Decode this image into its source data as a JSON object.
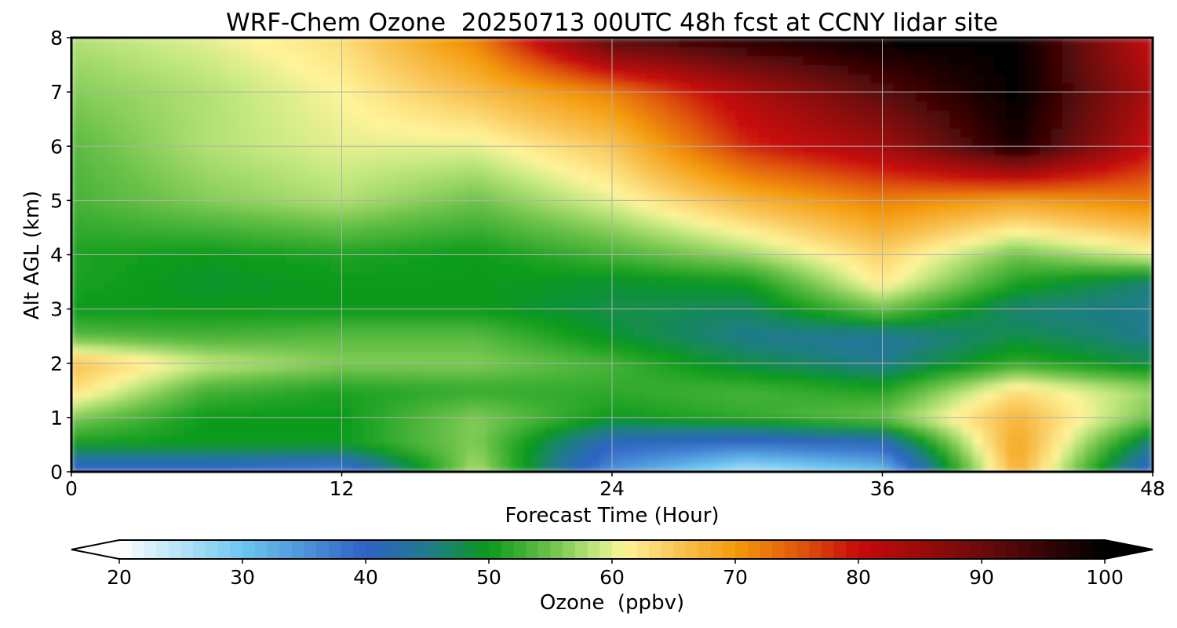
{
  "chart_data": {
    "type": "heatmap",
    "title": "WRF-Chem Ozone  20250713 00UTC 48h fcst at CCNY lidar site",
    "xlabel": "Forecast Time (Hour)",
    "ylabel": "Alt AGL (km)",
    "xlim": [
      0,
      48
    ],
    "ylim": [
      0,
      8
    ],
    "xticks": [
      "0",
      "12",
      "24",
      "36",
      "48"
    ],
    "yticks": [
      "0",
      "1",
      "2",
      "3",
      "4",
      "5",
      "6",
      "7",
      "8"
    ],
    "grid": true,
    "colorbar": {
      "label": "Ozone  (ppbv)",
      "range": [
        20,
        100
      ],
      "ticks": [
        "20",
        "30",
        "40",
        "50",
        "60",
        "70",
        "80",
        "90",
        "100"
      ],
      "extend": "both",
      "stops": [
        {
          "v": 20,
          "c": "#ffffff"
        },
        {
          "v": 30,
          "c": "#6cc6f0"
        },
        {
          "v": 40,
          "c": "#2e62c4"
        },
        {
          "v": 45,
          "c": "#217a8f"
        },
        {
          "v": 50,
          "c": "#0a9a1a"
        },
        {
          "v": 55,
          "c": "#6cc24a"
        },
        {
          "v": 59,
          "c": "#c9ea83"
        },
        {
          "v": 61,
          "c": "#fff49a"
        },
        {
          "v": 65,
          "c": "#f9c75a"
        },
        {
          "v": 70,
          "c": "#f49a0a"
        },
        {
          "v": 75,
          "c": "#e05a0a"
        },
        {
          "v": 80,
          "c": "#c80a0a"
        },
        {
          "v": 90,
          "c": "#6e0a0a"
        },
        {
          "v": 100,
          "c": "#000000"
        }
      ]
    },
    "x_hours": [
      0,
      6,
      12,
      18,
      24,
      30,
      36,
      42,
      48
    ],
    "y_km": [
      0,
      0.5,
      1,
      1.5,
      2,
      2.5,
      3,
      3.5,
      4,
      5,
      6,
      7,
      8
    ],
    "z_ppbv": [
      [
        38,
        38,
        36,
        58,
        35,
        25,
        30,
        68,
        38
      ],
      [
        50,
        50,
        50,
        56,
        40,
        38,
        40,
        69,
        45
      ],
      [
        56,
        50,
        50,
        56,
        50,
        52,
        55,
        67,
        55
      ],
      [
        63,
        53,
        51,
        52,
        52,
        53,
        51,
        63,
        57
      ],
      [
        66,
        59,
        56,
        56,
        53,
        48,
        45,
        52,
        48
      ],
      [
        54,
        53,
        54,
        54,
        49,
        45,
        44,
        48,
        45
      ],
      [
        50,
        50,
        50,
        50,
        48,
        47,
        55,
        46,
        45
      ],
      [
        51,
        49,
        50,
        50,
        49,
        50,
        62,
        51,
        46
      ],
      [
        51,
        50,
        51,
        50,
        53,
        57,
        64,
        55,
        60
      ],
      [
        53,
        56,
        58,
        55,
        60,
        67,
        72,
        69,
        72
      ],
      [
        54,
        58,
        60,
        60,
        65,
        78,
        84,
        98,
        80
      ],
      [
        56,
        58,
        61,
        66,
        72,
        83,
        92,
        100,
        83
      ],
      [
        58,
        60,
        63,
        72,
        93,
        97,
        100,
        100,
        80
      ]
    ]
  }
}
